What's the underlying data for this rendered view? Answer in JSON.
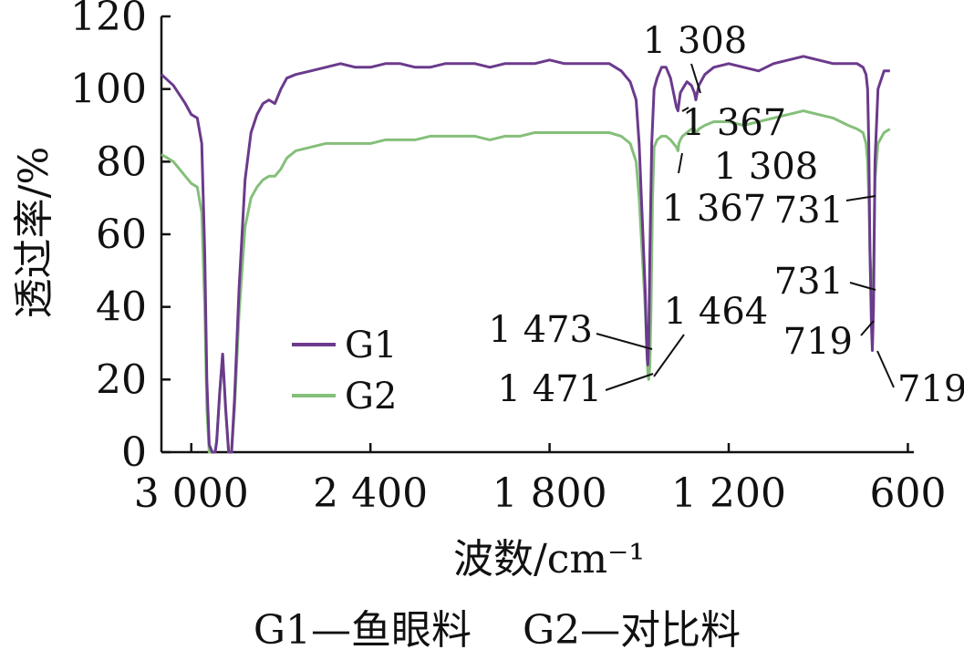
{
  "chart_data": {
    "type": "line",
    "xlabel": "波数/cm⁻¹",
    "ylabel": "透过率/%",
    "caption": "G1—鱼眼料    G2—对比料",
    "xlim": [
      3100,
      580
    ],
    "ylim": [
      0,
      120
    ],
    "x_ticks": [
      3000,
      2400,
      1800,
      1200,
      600
    ],
    "x_tick_labels": [
      "3 000",
      "2 400",
      "1 800",
      "1 200",
      "600"
    ],
    "y_ticks": [
      0,
      20,
      40,
      60,
      80,
      100,
      120
    ],
    "y_tick_labels": [
      "0",
      "20",
      "40",
      "60",
      "80",
      "100",
      "120"
    ],
    "grid": false,
    "legend_position": "center-left",
    "colors": {
      "G1": "#6b3a8c",
      "G2": "#85bf7a"
    },
    "series": [
      {
        "name": "G1",
        "x": [
          3100,
          3060,
          3020,
          3000,
          2980,
          2965,
          2955,
          2948,
          2940,
          2930,
          2920,
          2915,
          2905,
          2895,
          2885,
          2875,
          2865,
          2855,
          2840,
          2820,
          2800,
          2780,
          2760,
          2740,
          2720,
          2700,
          2680,
          2650,
          2600,
          2550,
          2500,
          2450,
          2400,
          2350,
          2300,
          2250,
          2200,
          2150,
          2100,
          2050,
          2000,
          1950,
          1900,
          1850,
          1800,
          1750,
          1700,
          1650,
          1600,
          1560,
          1530,
          1510,
          1500,
          1490,
          1480,
          1475,
          1473,
          1471,
          1468,
          1464,
          1458,
          1450,
          1440,
          1425,
          1410,
          1395,
          1385,
          1375,
          1370,
          1367,
          1362,
          1355,
          1340,
          1325,
          1315,
          1310,
          1308,
          1300,
          1280,
          1250,
          1200,
          1150,
          1100,
          1050,
          1000,
          950,
          900,
          850,
          800,
          770,
          750,
          740,
          735,
          731,
          727,
          722,
          719,
          715,
          710,
          700,
          680,
          660
        ],
        "y": [
          104,
          101,
          96,
          93,
          92,
          85,
          55,
          20,
          2,
          0,
          0,
          3,
          16,
          27,
          12,
          0,
          0,
          15,
          45,
          75,
          88,
          93,
          96,
          97,
          96,
          100,
          103,
          104,
          105,
          106,
          107,
          106,
          106,
          107,
          107,
          106,
          106,
          107,
          107,
          107,
          106,
          107,
          107,
          107,
          108,
          107,
          107,
          107,
          107,
          105,
          102,
          97,
          85,
          65,
          45,
          30,
          26,
          24,
          30,
          55,
          85,
          100,
          103,
          106,
          106,
          103,
          99,
          95,
          94,
          96,
          99,
          100,
          102,
          101,
          99,
          97,
          98,
          101,
          104,
          106,
          107,
          106,
          105,
          107,
          108,
          109,
          108,
          107,
          107,
          107,
          106,
          104,
          100,
          85,
          55,
          35,
          28,
          40,
          80,
          100,
          105,
          105
        ]
      },
      {
        "name": "G2",
        "x": [
          3100,
          3060,
          3020,
          3000,
          2980,
          2965,
          2955,
          2948,
          2940,
          2930,
          2920,
          2915,
          2905,
          2895,
          2885,
          2875,
          2865,
          2855,
          2840,
          2820,
          2800,
          2780,
          2760,
          2740,
          2720,
          2700,
          2680,
          2650,
          2600,
          2550,
          2500,
          2450,
          2400,
          2350,
          2300,
          2250,
          2200,
          2150,
          2100,
          2050,
          2000,
          1950,
          1900,
          1850,
          1800,
          1750,
          1700,
          1650,
          1600,
          1560,
          1530,
          1510,
          1500,
          1490,
          1480,
          1475,
          1471,
          1468,
          1464,
          1460,
          1455,
          1450,
          1440,
          1425,
          1410,
          1395,
          1385,
          1375,
          1370,
          1367,
          1362,
          1355,
          1340,
          1325,
          1315,
          1310,
          1308,
          1300,
          1280,
          1250,
          1200,
          1150,
          1100,
          1050,
          1000,
          950,
          900,
          850,
          800,
          770,
          750,
          740,
          735,
          731,
          727,
          722,
          719,
          715,
          710,
          700,
          680,
          660
        ],
        "y": [
          82,
          80,
          76,
          74,
          73,
          66,
          40,
          12,
          0,
          0,
          0,
          3,
          16,
          27,
          12,
          0,
          0,
          12,
          38,
          62,
          70,
          73,
          75,
          76,
          76,
          78,
          81,
          83,
          84,
          85,
          85,
          85,
          85,
          86,
          86,
          86,
          87,
          87,
          87,
          87,
          86,
          87,
          87,
          88,
          88,
          88,
          88,
          88,
          88,
          87,
          85,
          80,
          70,
          55,
          40,
          30,
          22,
          20,
          24,
          40,
          70,
          84,
          86,
          87,
          87,
          86,
          85,
          84,
          83,
          85,
          86,
          87,
          88,
          89,
          89,
          88,
          88,
          89,
          90,
          91,
          91,
          90,
          91,
          92,
          93,
          94,
          93,
          92,
          90,
          89,
          88,
          85,
          80,
          70,
          55,
          45,
          42,
          50,
          75,
          85,
          88,
          89
        ]
      }
    ],
    "annotations": [
      {
        "label": "1 308",
        "x": 1308,
        "y": 99,
        "series": "G1"
      },
      {
        "label": "1 367",
        "x": 1367,
        "y": 94,
        "series": "G1"
      },
      {
        "label": "1 308",
        "x": 1308,
        "y": 88,
        "series": "G2"
      },
      {
        "label": "1 367",
        "x": 1367,
        "y": 83,
        "series": "G2"
      },
      {
        "label": "731",
        "x": 731,
        "y": 70,
        "series": "G1"
      },
      {
        "label": "731",
        "x": 731,
        "y": 45,
        "series": "G2"
      },
      {
        "label": "1 473",
        "x": 1473,
        "y": 27,
        "series": "G1"
      },
      {
        "label": "1 464",
        "x": 1464,
        "y": 24,
        "series": "G1"
      },
      {
        "label": "1 471",
        "x": 1471,
        "y": 20,
        "series": "G2"
      },
      {
        "label": "719",
        "x": 719,
        "y": 37,
        "series": "G2"
      },
      {
        "label": "719",
        "x": 719,
        "y": 28,
        "series": "G1"
      }
    ]
  }
}
